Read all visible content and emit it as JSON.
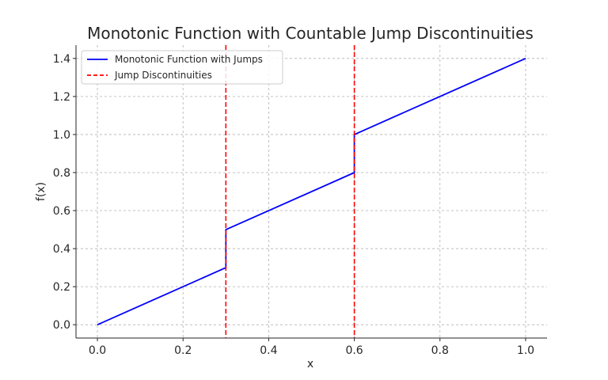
{
  "chart_data": {
    "type": "line",
    "title": "Monotonic Function with Countable Jump Discontinuities",
    "xlabel": "x",
    "ylabel": "f(x)",
    "xlim": [
      -0.05,
      1.05
    ],
    "ylim": [
      -0.07,
      1.47
    ],
    "x_ticks": [
      "0.0",
      "0.2",
      "0.4",
      "0.6",
      "0.8",
      "1.0"
    ],
    "x_tick_values": [
      0.0,
      0.2,
      0.4,
      0.6,
      0.8,
      1.0
    ],
    "y_ticks": [
      "0.0",
      "0.2",
      "0.4",
      "0.6",
      "0.8",
      "1.0",
      "1.2",
      "1.4"
    ],
    "y_tick_values": [
      0.0,
      0.2,
      0.4,
      0.6,
      0.8,
      1.0,
      1.2,
      1.4
    ],
    "grid": true,
    "legend_position": "top-left",
    "series": [
      {
        "name": "Monotonic Function with Jumps",
        "style": "solid",
        "color": "#0000ff",
        "x": [
          0.0,
          0.3,
          0.3,
          0.6,
          0.6,
          1.0
        ],
        "y": [
          0.0,
          0.3,
          0.5,
          0.8,
          1.0,
          1.4
        ]
      },
      {
        "name": "Jump Discontinuities",
        "style": "dashed",
        "color": "#ff0000",
        "vlines": [
          0.3,
          0.6
        ]
      }
    ]
  }
}
